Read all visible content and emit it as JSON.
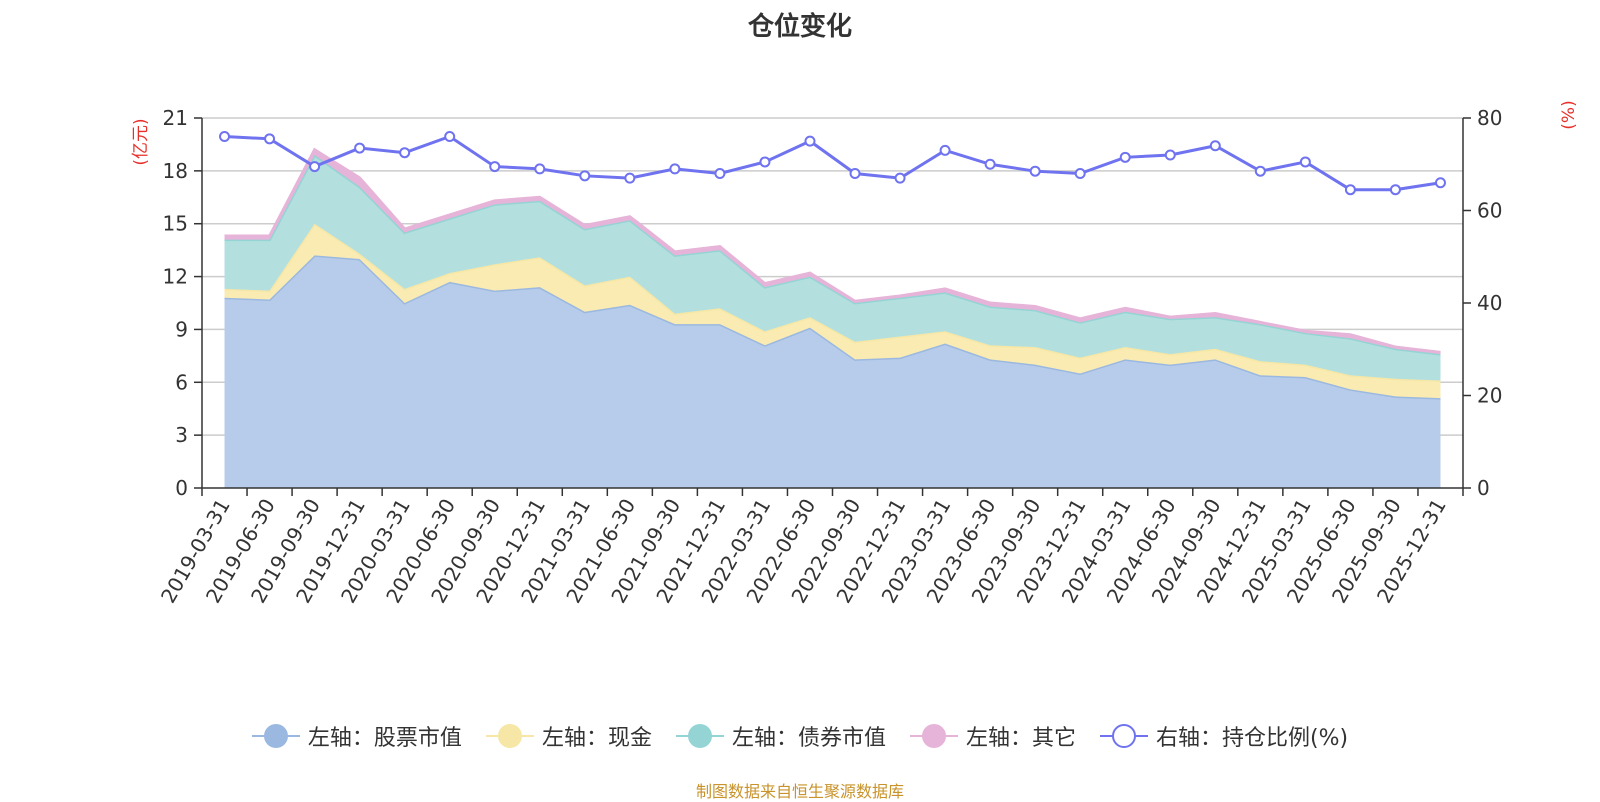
{
  "title": "仓位变化",
  "footer": "制图数据来自恒生聚源数据库",
  "left_axis_unit": "(亿元)",
  "right_axis_unit": "(%)",
  "legend": [
    {
      "label": "左轴：股票市值",
      "color": "#9bb8e0",
      "fill": "#b7cceb",
      "hollow": false
    },
    {
      "label": "左轴：现金",
      "color": "#f7e7a6",
      "fill": "#f9ebb1",
      "hollow": false
    },
    {
      "label": "左轴：债券市值",
      "color": "#95d4d4",
      "fill": "#b3e0df",
      "hollow": false
    },
    {
      "label": "左轴：其它",
      "color": "#e6b3d9",
      "fill": "#e6b3d9",
      "hollow": false
    },
    {
      "label": "右轴：持仓比例(%)",
      "color": "#6f73ef",
      "fill": "#ffffff",
      "hollow": true
    }
  ],
  "chart_data": {
    "type": "area",
    "categories": [
      "2019-03-31",
      "2019-06-30",
      "2019-09-30",
      "2019-12-31",
      "2020-03-31",
      "2020-06-30",
      "2020-09-30",
      "2020-12-31",
      "2021-03-31",
      "2021-06-30",
      "2021-09-30",
      "2021-12-31",
      "2022-03-31",
      "2022-06-30",
      "2022-09-30",
      "2022-12-31",
      "2023-03-31",
      "2023-06-30",
      "2023-09-30",
      "2023-12-31",
      "2024-03-31",
      "2024-06-30",
      "2024-09-30",
      "2024-12-31",
      "2025-03-31",
      "2025-06-30",
      "2025-09-30",
      "2025-12-31"
    ],
    "stacked": true,
    "series": [
      {
        "name": "股票市值",
        "axis": "left",
        "values": [
          10.8,
          10.7,
          13.2,
          13.0,
          10.5,
          11.7,
          11.2,
          11.4,
          10.0,
          10.4,
          9.3,
          9.3,
          8.1,
          9.1,
          7.3,
          7.4,
          8.2,
          7.3,
          7.0,
          6.5,
          7.3,
          7.0,
          7.3,
          6.4,
          6.3,
          5.6,
          5.2,
          5.1
        ]
      },
      {
        "name": "现金",
        "axis": "left",
        "values": [
          0.5,
          0.5,
          1.8,
          0.3,
          0.8,
          0.5,
          1.5,
          1.7,
          1.5,
          1.6,
          0.6,
          0.9,
          0.8,
          0.6,
          1.0,
          1.2,
          0.7,
          0.8,
          1.0,
          0.9,
          0.7,
          0.6,
          0.6,
          0.8,
          0.7,
          0.8,
          1.0,
          1.0
        ]
      },
      {
        "name": "债券市值",
        "axis": "left",
        "values": [
          2.8,
          2.9,
          3.9,
          3.8,
          3.2,
          3.1,
          3.4,
          3.2,
          3.2,
          3.2,
          3.3,
          3.3,
          2.5,
          2.3,
          2.2,
          2.2,
          2.2,
          2.2,
          2.1,
          2.0,
          2.0,
          2.0,
          1.8,
          2.1,
          1.8,
          2.1,
          1.7,
          1.5
        ]
      },
      {
        "name": "其它",
        "axis": "left",
        "values": [
          0.2,
          0.2,
          0.3,
          0.5,
          0.2,
          0.2,
          0.2,
          0.2,
          0.2,
          0.2,
          0.2,
          0.2,
          0.2,
          0.2,
          0.1,
          0.1,
          0.2,
          0.2,
          0.2,
          0.2,
          0.2,
          0.1,
          0.2,
          0.1,
          0.1,
          0.2,
          0.1,
          0.1
        ]
      },
      {
        "name": "持仓比例(%)",
        "axis": "right",
        "type": "line",
        "values": [
          76.0,
          75.5,
          69.5,
          73.5,
          72.5,
          76.0,
          69.5,
          69.0,
          67.5,
          67.0,
          69.0,
          68.0,
          70.5,
          75.0,
          68.0,
          67.0,
          73.0,
          70.0,
          68.5,
          68.0,
          71.5,
          72.0,
          74.0,
          68.5,
          70.5,
          64.5,
          64.5,
          66.0
        ]
      }
    ],
    "y_left": {
      "min": 0,
      "max": 21,
      "ticks": [
        0,
        3,
        6,
        9,
        12,
        15,
        18,
        21
      ]
    },
    "y_right": {
      "min": 0,
      "max": 80,
      "ticks": [
        0,
        20,
        40,
        60,
        80
      ]
    },
    "grid": true,
    "legend_position": "bottom"
  }
}
